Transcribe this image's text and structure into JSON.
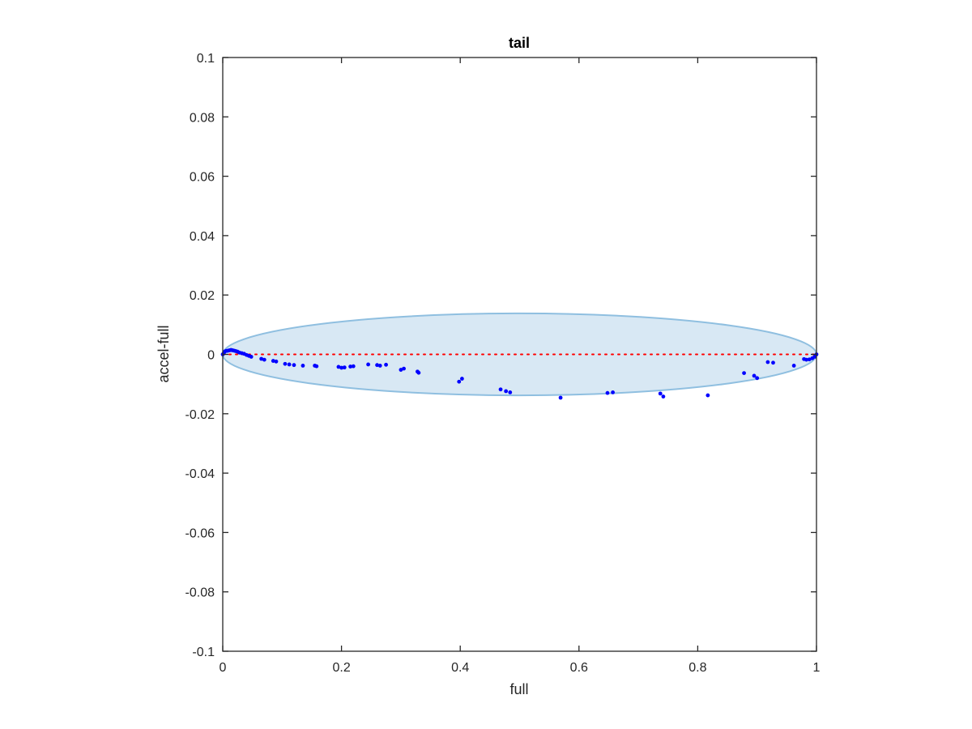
{
  "chart_data": {
    "type": "scatter",
    "title": "tail",
    "xlabel": "full",
    "ylabel": "accel-full",
    "xlim": [
      0,
      1
    ],
    "ylim": [
      -0.1,
      0.1
    ],
    "x_ticks": [
      0,
      0.2,
      0.4,
      0.6,
      0.8,
      1
    ],
    "x_tick_labels": [
      "0",
      "0.2",
      "0.4",
      "0.6",
      "0.8",
      "1"
    ],
    "y_ticks": [
      -0.1,
      -0.08,
      -0.06,
      -0.04,
      -0.02,
      0,
      0.02,
      0.04,
      0.06,
      0.08,
      0.1
    ],
    "y_tick_labels": [
      "-0.1",
      "-0.08",
      "-0.06",
      "-0.04",
      "-0.02",
      "0",
      "0.02",
      "0.04",
      "0.06",
      "0.08",
      "0.1"
    ],
    "grid": false,
    "legend": "none",
    "reference_line": {
      "y": 0,
      "x_range": [
        0,
        1
      ],
      "style": "dotted",
      "color": "#ff0000"
    },
    "ellipse": {
      "cx": 0.5,
      "cy": 0,
      "rx": 0.5,
      "ry": 0.0138,
      "fill": "#d8e8f4",
      "stroke": "#8fbfe0"
    },
    "series": [
      {
        "color": "#0000ff",
        "points": [
          [
            0.0,
            0.0
          ],
          [
            0.002,
            0.0005
          ],
          [
            0.004,
            0.001
          ],
          [
            0.006,
            0.0012
          ],
          [
            0.008,
            0.0012
          ],
          [
            0.01,
            0.0013
          ],
          [
            0.012,
            0.0014
          ],
          [
            0.014,
            0.0015
          ],
          [
            0.016,
            0.0014
          ],
          [
            0.018,
            0.0013
          ],
          [
            0.02,
            0.0012
          ],
          [
            0.022,
            0.0011
          ],
          [
            0.025,
            0.0009
          ],
          [
            0.028,
            0.0006
          ],
          [
            0.032,
            0.0004
          ],
          [
            0.036,
            0.0002
          ],
          [
            0.04,
            -0.0002
          ],
          [
            0.044,
            -0.0005
          ],
          [
            0.048,
            -0.0008
          ],
          [
            0.065,
            -0.0015
          ],
          [
            0.07,
            -0.0018
          ],
          [
            0.085,
            -0.0022
          ],
          [
            0.09,
            -0.0024
          ],
          [
            0.105,
            -0.0032
          ],
          [
            0.112,
            -0.0034
          ],
          [
            0.12,
            -0.0036
          ],
          [
            0.135,
            -0.0038
          ],
          [
            0.155,
            -0.0038
          ],
          [
            0.158,
            -0.004
          ],
          [
            0.195,
            -0.0042
          ],
          [
            0.2,
            -0.0045
          ],
          [
            0.205,
            -0.0044
          ],
          [
            0.215,
            -0.0041
          ],
          [
            0.22,
            -0.004
          ],
          [
            0.245,
            -0.0034
          ],
          [
            0.26,
            -0.0036
          ],
          [
            0.265,
            -0.0038
          ],
          [
            0.275,
            -0.0035
          ],
          [
            0.3,
            -0.0052
          ],
          [
            0.305,
            -0.0048
          ],
          [
            0.328,
            -0.0058
          ],
          [
            0.33,
            -0.0062
          ],
          [
            0.398,
            -0.0092
          ],
          [
            0.403,
            -0.0082
          ],
          [
            0.468,
            -0.0118
          ],
          [
            0.477,
            -0.0124
          ],
          [
            0.484,
            -0.0128
          ],
          [
            0.569,
            -0.0146
          ],
          [
            0.648,
            -0.013
          ],
          [
            0.657,
            -0.0128
          ],
          [
            0.737,
            -0.0132
          ],
          [
            0.742,
            -0.0142
          ],
          [
            0.817,
            -0.0138
          ],
          [
            0.878,
            -0.0063
          ],
          [
            0.895,
            -0.0072
          ],
          [
            0.9,
            -0.008
          ],
          [
            0.918,
            -0.0026
          ],
          [
            0.927,
            -0.0028
          ],
          [
            0.962,
            -0.0038
          ],
          [
            0.979,
            -0.0016
          ],
          [
            0.983,
            -0.0018
          ],
          [
            0.988,
            -0.0017
          ],
          [
            0.993,
            -0.0013
          ],
          [
            0.997,
            -0.0008
          ],
          [
            1.0,
            0.0
          ]
        ]
      }
    ]
  }
}
